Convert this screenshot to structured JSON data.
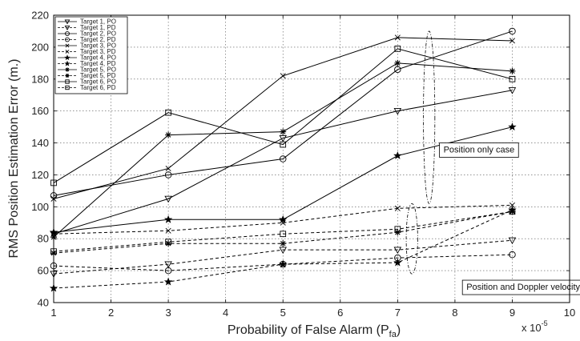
{
  "chart_data": {
    "type": "line",
    "xlabel_main": "Probability of False Alarm (P",
    "xlabel_sub": "fa",
    "xlabel_close": ")",
    "x_multiplier": "x 10",
    "x_multiplier_exp": "-5",
    "ylabel": "RMS Position Estimation Error (m.)",
    "xlim": [
      1,
      10
    ],
    "ylim": [
      40,
      220
    ],
    "xticks": [
      1,
      2,
      3,
      4,
      5,
      6,
      7,
      8,
      9,
      10
    ],
    "yticks": [
      40,
      60,
      80,
      100,
      120,
      140,
      160,
      180,
      200,
      220
    ],
    "grid": true,
    "legend_position": "top-left",
    "x": [
      1,
      3,
      5,
      7,
      9
    ],
    "series": [
      {
        "name": "Target 1, PO",
        "marker": "triangle-down",
        "dashed": false,
        "values": [
          83,
          105,
          143,
          160,
          173
        ]
      },
      {
        "name": "Target 1, PD",
        "marker": "triangle-down",
        "dashed": true,
        "values": [
          58,
          64,
          73,
          73,
          79
        ]
      },
      {
        "name": "Target 2, PO",
        "marker": "circle",
        "dashed": false,
        "values": [
          107,
          120,
          130,
          186,
          210
        ]
      },
      {
        "name": "Target 2, PD",
        "marker": "circle",
        "dashed": true,
        "values": [
          63,
          60,
          64,
          68,
          70
        ]
      },
      {
        "name": "Target 3, PO",
        "marker": "x",
        "dashed": false,
        "values": [
          105,
          124,
          182,
          206,
          204
        ]
      },
      {
        "name": "Target 3, PD",
        "marker": "x",
        "dashed": true,
        "values": [
          83,
          85,
          90,
          99,
          101
        ]
      },
      {
        "name": "Target 4, PO",
        "marker": "star",
        "dashed": false,
        "values": [
          84,
          92,
          92,
          132,
          150
        ]
      },
      {
        "name": "Target 4, PD",
        "marker": "star",
        "dashed": true,
        "values": [
          49,
          53,
          64,
          65,
          98
        ]
      },
      {
        "name": "Target 5, PO",
        "marker": "asterisk",
        "dashed": false,
        "values": [
          81,
          145,
          147,
          190,
          185
        ]
      },
      {
        "name": "Target 5, PD",
        "marker": "asterisk",
        "dashed": true,
        "values": [
          71,
          77,
          77,
          84,
          97
        ]
      },
      {
        "name": "Target 6, PO",
        "marker": "square",
        "dashed": false,
        "values": [
          115,
          159,
          139,
          199,
          180
        ]
      },
      {
        "name": "Target 6, PD",
        "marker": "square",
        "dashed": true,
        "values": [
          72,
          78,
          83,
          86,
          97
        ]
      }
    ],
    "annotations": [
      {
        "text": "Position only case",
        "x": 7.8,
        "y": 134
      },
      {
        "text": "Position and Doppler velocity case",
        "x": 8.2,
        "y": 48
      }
    ],
    "ellipses": [
      {
        "cx": 7.55,
        "cy": 156,
        "rx": 0.1,
        "ry": 54
      },
      {
        "cx": 7.25,
        "cy": 80,
        "rx": 0.1,
        "ry": 22
      }
    ]
  }
}
